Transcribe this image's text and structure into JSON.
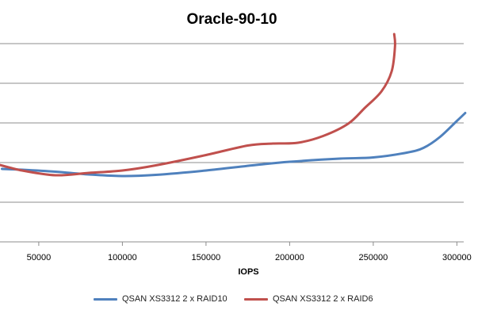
{
  "chart_data": {
    "type": "line",
    "title": "Oracle-90-10",
    "xlabel": "IOPS",
    "ylabel": "",
    "xlim": [
      25000,
      305000
    ],
    "ylim": [
      0,
      6
    ],
    "x_ticks": [
      50000,
      100000,
      150000,
      200000,
      250000,
      300000
    ],
    "x_tick_labels": [
      "50000",
      "100000",
      "150000",
      "200000",
      "250000",
      "300000"
    ],
    "y_gridlines": [
      1,
      2,
      3,
      4,
      5
    ],
    "grid": true,
    "legend_position": "bottom",
    "series": [
      {
        "name": "QSAN XS3312 2 x RAID10",
        "color": "#4F81BD",
        "x": [
          28000,
          40000,
          60000,
          80000,
          100000,
          120000,
          150000,
          180000,
          200000,
          230000,
          250000,
          270000,
          280000,
          290000,
          300000,
          305000
        ],
        "y": [
          1.84,
          1.82,
          1.77,
          1.7,
          1.66,
          1.69,
          1.8,
          1.94,
          2.02,
          2.1,
          2.13,
          2.25,
          2.37,
          2.65,
          3.05,
          3.25
        ]
      },
      {
        "name": "QSAN XS3312 2 x RAID6",
        "color": "#C0504D",
        "x": [
          25000,
          40000,
          60000,
          80000,
          100000,
          120000,
          150000,
          175000,
          190000,
          205000,
          220000,
          235000,
          245000,
          255000,
          261000,
          263000,
          262500
        ],
        "y": [
          1.96,
          1.8,
          1.68,
          1.74,
          1.8,
          1.93,
          2.19,
          2.43,
          2.48,
          2.5,
          2.67,
          2.98,
          3.38,
          3.8,
          4.3,
          4.93,
          5.24
        ]
      }
    ]
  }
}
